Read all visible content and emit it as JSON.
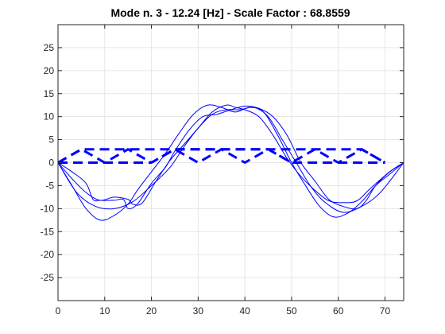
{
  "chart_data": {
    "type": "line",
    "title": "Mode n. 3 - 12.24 [Hz] - Scale Factor : 68.8559",
    "xlabel": "",
    "ylabel": "",
    "xlim": [
      0,
      74
    ],
    "ylim": [
      -30,
      30
    ],
    "xticks": [
      0,
      10,
      20,
      30,
      40,
      50,
      60,
      70
    ],
    "yticks": [
      -25,
      -20,
      -15,
      -10,
      -5,
      0,
      5,
      10,
      15,
      20,
      25
    ],
    "grid": true,
    "legend": "none",
    "colors": {
      "line": "#0000ff",
      "axis": "#262626",
      "grid": "#e6e6e6",
      "title": "#000000"
    },
    "series": [
      {
        "style": "dashed",
        "line_width": 3,
        "x": [
          0,
          5,
          10,
          15,
          20,
          25,
          30,
          35,
          40,
          45,
          50,
          55,
          60,
          65,
          70
        ],
        "y": [
          0,
          2.9,
          0,
          2.9,
          0,
          2.9,
          0,
          2.9,
          0,
          2.9,
          0,
          2.9,
          0,
          2.9,
          0
        ]
      },
      {
        "style": "dashed",
        "line_width": 3,
        "x": [
          0,
          5,
          10,
          15,
          20,
          25,
          30,
          35,
          40,
          45,
          50,
          55,
          60,
          65,
          70
        ],
        "y": [
          0,
          0,
          0,
          0,
          0,
          2.9,
          2.9,
          2.9,
          2.9,
          2.9,
          0,
          0,
          0,
          0,
          0
        ]
      },
      {
        "style": "dashed",
        "line_width": 3,
        "x": [
          0,
          5,
          10,
          15,
          20,
          25,
          30,
          35,
          40,
          45,
          50,
          55,
          60,
          65,
          70
        ],
        "y": [
          0,
          2.9,
          2.9,
          2.9,
          2.9,
          2.9,
          2.9,
          2.9,
          2.9,
          2.9,
          2.9,
          2.9,
          2.9,
          2.9,
          0
        ]
      },
      {
        "style": "solid",
        "line_width": 1,
        "x": [
          0,
          3,
          6,
          9,
          12,
          15,
          17,
          20,
          23,
          26,
          29,
          32,
          35,
          38,
          41,
          44,
          47,
          50,
          53,
          56,
          59,
          62,
          65,
          68,
          71,
          74
        ],
        "y": [
          0,
          -5,
          -10,
          -12.5,
          -11.5,
          -9,
          -6,
          -2,
          2,
          6.5,
          10.5,
          12.5,
          12,
          11,
          12,
          11,
          6,
          0,
          -5,
          -9.5,
          -11.8,
          -11,
          -8.5,
          -5,
          -2.5,
          0
        ]
      },
      {
        "style": "solid",
        "line_width": 1,
        "x": [
          0,
          3,
          6,
          7.5,
          9,
          12,
          14,
          15,
          17,
          20,
          23,
          25,
          28,
          31,
          34,
          37,
          40,
          43,
          46,
          49,
          52,
          55,
          58,
          61,
          64,
          66,
          68,
          71,
          74
        ],
        "y": [
          0,
          -2,
          -4.5,
          -8,
          -8.2,
          -8.2,
          -8,
          -10,
          -9,
          -4.5,
          -1,
          2.5,
          7,
          10,
          10.5,
          11.5,
          12.3,
          11.8,
          10,
          6,
          0,
          -4,
          -8,
          -9.5,
          -10,
          -8.2,
          -5,
          -2,
          0
        ]
      },
      {
        "style": "solid",
        "line_width": 1,
        "x": [
          0,
          3,
          6,
          9,
          12,
          15,
          16,
          18,
          21,
          24,
          27,
          30,
          33,
          36,
          38,
          40,
          43,
          46,
          49,
          52,
          55,
          58,
          61,
          64,
          67,
          71,
          74
        ],
        "y": [
          0,
          -3.5,
          -6.5,
          -8.2,
          -7.5,
          -8,
          -9,
          -8.8,
          -4,
          0.5,
          4,
          7.5,
          11,
          12.5,
          12,
          11.5,
          10,
          6,
          1,
          -3,
          -6,
          -8.3,
          -8.7,
          -8.3,
          -5.5,
          -2,
          0
        ]
      },
      {
        "style": "solid",
        "line_width": 1,
        "x": [
          0,
          4,
          8,
          12,
          16,
          20,
          24,
          27,
          30,
          33,
          36,
          39,
          42,
          45,
          48,
          51,
          54,
          57,
          61,
          65,
          69,
          74
        ],
        "y": [
          0,
          -6.5,
          -9.5,
          -10,
          -8.5,
          -5,
          -1,
          3.5,
          7.5,
          10.5,
          11.5,
          11.5,
          12,
          10,
          5,
          0,
          -5,
          -8.5,
          -10.8,
          -9.5,
          -6.5,
          0
        ]
      }
    ]
  }
}
